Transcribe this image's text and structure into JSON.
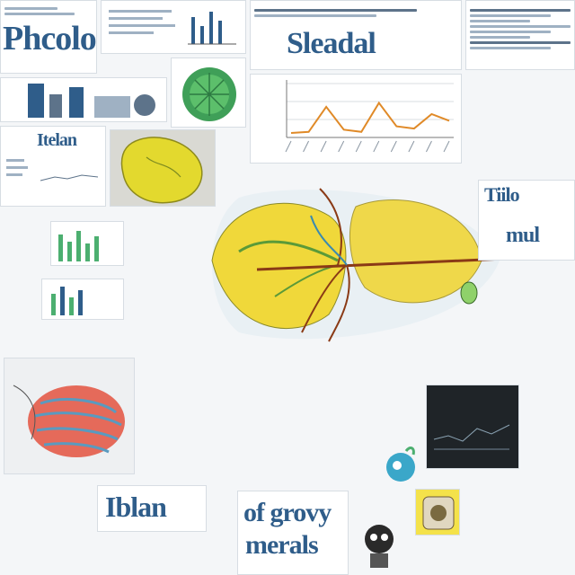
{
  "headlines": {
    "top_left": "Phcolo",
    "top_center": "Sleadal",
    "mid_left": "Itelan",
    "mid_right_1": "Tiilo",
    "mid_right_2": "mul",
    "bottom_center_1": "of grovy",
    "bottom_center_2": "merals",
    "bottom_left": "Iblan"
  },
  "chart_data": {
    "type": "line",
    "title": "",
    "xlabel": "",
    "ylabel": "",
    "x": [
      1,
      2,
      3,
      4,
      5,
      6,
      7,
      8,
      9,
      10
    ],
    "series": [
      {
        "values": [
          0.08,
          0.1,
          0.55,
          0.14,
          0.1,
          0.62,
          0.2,
          0.16,
          0.42,
          0.3
        ]
      }
    ],
    "ylim": [
      0,
      1
    ],
    "grid": true
  },
  "colors": {
    "accent_blue": "#2f5d8a",
    "leaf_yellow": "#f0d83a",
    "leaf_green": "#6ab04c",
    "vein_brown": "#8a3a16",
    "chart_line": "#e08a28",
    "teal": "#3aa7c9"
  }
}
